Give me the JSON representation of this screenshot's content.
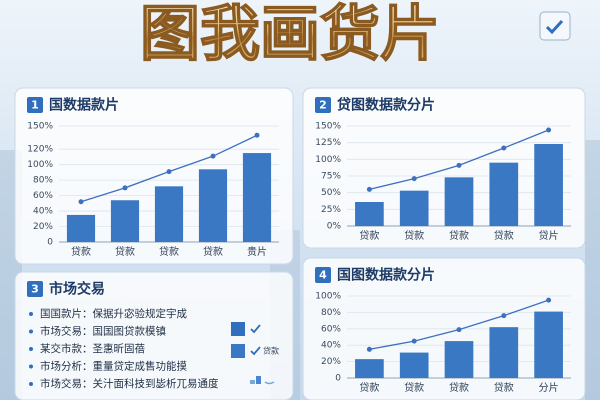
{
  "header": {
    "title": "图我画货片"
  },
  "chart_data": [
    {
      "type": "bar",
      "number": "1",
      "title": "国数据款片",
      "categories": [
        "贷款",
        "贷款",
        "贷款",
        "贷款",
        "贵片"
      ],
      "series": [
        {
          "type": "bar",
          "color": "#3a78c4",
          "values": [
            35,
            54,
            72,
            94,
            115
          ]
        },
        {
          "type": "line",
          "color": "#3f6fc0",
          "values": [
            52,
            70,
            91,
            111,
            138
          ]
        }
      ],
      "ylim": [
        0,
        150
      ],
      "yticks": [
        0,
        {
          "value": 20,
          "label": "20%"
        },
        {
          "value": 40,
          "label": "40%"
        },
        {
          "value": 60,
          "label": "60%"
        },
        {
          "value": 80,
          "label": "80%"
        },
        {
          "value": 100,
          "label": "100%"
        },
        {
          "value": 120,
          "label": "120%"
        },
        {
          "value": 150,
          "label": "150%"
        }
      ],
      "grid": true
    },
    {
      "type": "bar",
      "number": "2",
      "title": "贷图数据款分片",
      "categories": [
        "贷款",
        "贷款",
        "贷款",
        "贷款",
        "贷片"
      ],
      "series": [
        {
          "type": "bar",
          "color": "#3a78c4",
          "values": [
            36,
            53,
            73,
            95,
            123
          ]
        },
        {
          "type": "line",
          "color": "#3f6fc0",
          "values": [
            55,
            71,
            91,
            117,
            144
          ]
        }
      ],
      "ylim": [
        0,
        150
      ],
      "yticks": [
        {
          "value": 0,
          "label": "0%"
        },
        {
          "value": 25,
          "label": "25%"
        },
        {
          "value": 50,
          "label": "50%"
        },
        {
          "value": 75,
          "label": "75%"
        },
        {
          "value": 100,
          "label": "100%"
        },
        {
          "value": 125,
          "label": "125%"
        },
        {
          "value": 150,
          "label": "150%"
        }
      ],
      "grid": true
    },
    {
      "type": "bar",
      "number": "4",
      "title": "国图数据款分片",
      "categories": [
        "贷款",
        "贷款",
        "贷款",
        "贷款",
        "分片"
      ],
      "series": [
        {
          "type": "bar",
          "color": "#3a78c4",
          "values": [
            23,
            31,
            45,
            62,
            81
          ]
        },
        {
          "type": "line",
          "color": "#3f6fc0",
          "values": [
            35,
            45,
            59,
            76,
            95
          ]
        }
      ],
      "ylim": [
        0,
        100
      ],
      "yticks": [
        0,
        {
          "value": 20,
          "label": "20%"
        },
        {
          "value": 40,
          "label": "40%"
        },
        {
          "value": 60,
          "label": "60%"
        },
        {
          "value": 80,
          "label": "80%"
        },
        {
          "value": 100,
          "label": "100%"
        }
      ],
      "grid": true
    }
  ],
  "list_panel": {
    "number": "3",
    "title": "市场交易",
    "items": [
      "国国款片：保据升宓验规定宇成",
      "市场交易：国国图贷款模镇",
      "某交市款：圣惠昕固蓓",
      "市场分析：重量贷定成售功能摸",
      "市场交易：关汁面科技到毖析兀易通度"
    ],
    "icon_label": "贷款"
  }
}
